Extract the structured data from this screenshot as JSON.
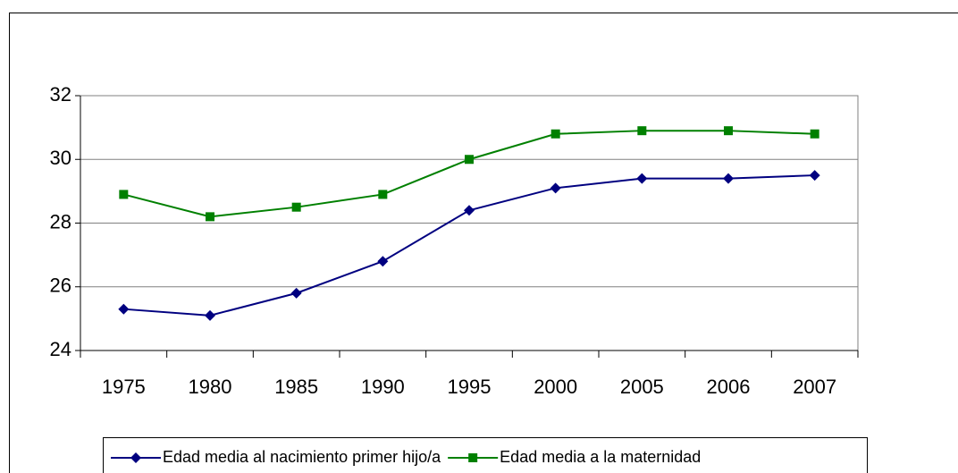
{
  "chart_data": {
    "type": "line",
    "categories": [
      "1975",
      "1980",
      "1985",
      "1990",
      "1995",
      "2000",
      "2005",
      "2006",
      "2007"
    ],
    "series": [
      {
        "name": "Edad media al nacimiento primer hijo/a",
        "color": "#000080",
        "marker": "diamond",
        "values": [
          25.3,
          25.1,
          25.8,
          26.8,
          28.4,
          29.1,
          29.4,
          29.4,
          29.5
        ]
      },
      {
        "name": "Edad media a la maternidad",
        "color": "#008000",
        "marker": "square",
        "values": [
          28.9,
          28.2,
          28.5,
          28.9,
          30.0,
          30.8,
          30.9,
          30.9,
          30.8
        ]
      }
    ],
    "ylim": [
      24,
      32
    ],
    "yticks": [
      24,
      26,
      28,
      30,
      32
    ],
    "grid": true,
    "legend": "bottom"
  }
}
